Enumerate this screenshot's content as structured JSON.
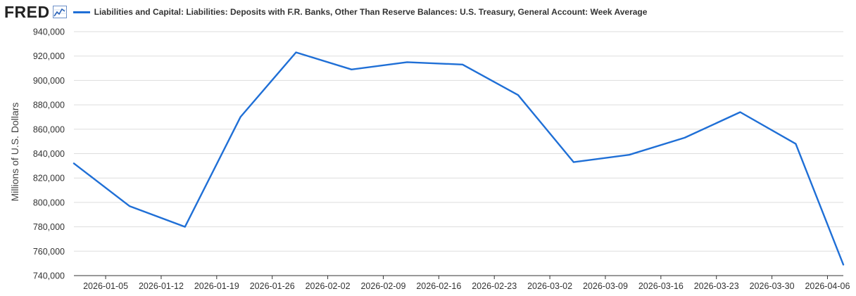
{
  "header": {
    "logo_text": "FRED",
    "graph_icon": "line-graph-icon"
  },
  "colors": {
    "series": "#1f6fd6",
    "grid": "#dddddd",
    "axis": "#333333"
  },
  "chart_data": {
    "type": "line",
    "title": "",
    "xlabel": "",
    "ylabel": "Millions of U.S. Dollars",
    "ylim": [
      740000,
      940000
    ],
    "yticks": [
      740000,
      760000,
      780000,
      800000,
      820000,
      840000,
      860000,
      880000,
      900000,
      920000,
      940000
    ],
    "ytick_labels": [
      "740,000",
      "760,000",
      "780,000",
      "800,000",
      "820,000",
      "840,000",
      "860,000",
      "880,000",
      "900,000",
      "920,000",
      "940,000"
    ],
    "xlim": [
      "2026-01-01",
      "2026-04-08"
    ],
    "xticks": [
      "2026-01-05",
      "2026-01-12",
      "2026-01-19",
      "2026-01-26",
      "2026-02-02",
      "2026-02-09",
      "2026-02-16",
      "2026-02-23",
      "2026-03-02",
      "2026-03-09",
      "2026-03-16",
      "2026-03-23",
      "2026-03-30",
      "2026-04-06"
    ],
    "grid": true,
    "legend_position": "top",
    "series": [
      {
        "name": "Liabilities and Capital: Liabilities: Deposits with F.R. Banks, Other Than Reserve Balances: U.S. Treasury, General Account: Week Average",
        "x": [
          "2026-01-01",
          "2026-01-08",
          "2026-01-15",
          "2026-01-22",
          "2026-01-29",
          "2026-02-05",
          "2026-02-12",
          "2026-02-19",
          "2026-02-26",
          "2026-03-05",
          "2026-03-12",
          "2026-03-19",
          "2026-03-26",
          "2026-04-02",
          "2026-04-08"
        ],
        "values": [
          832000,
          797000,
          780000,
          870000,
          923000,
          909000,
          915000,
          913000,
          888000,
          833000,
          839000,
          853000,
          874000,
          848000,
          749000
        ]
      }
    ]
  }
}
